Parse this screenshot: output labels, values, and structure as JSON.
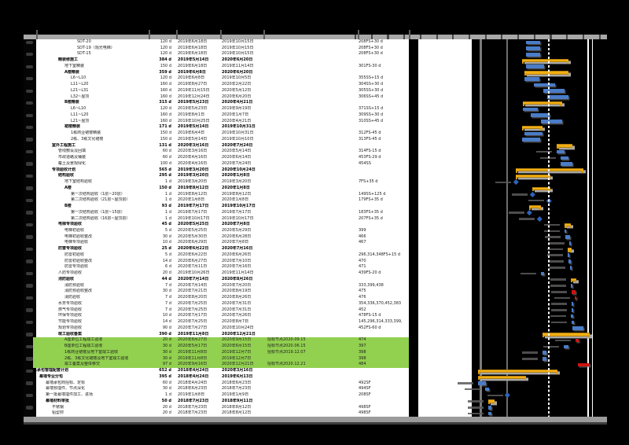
{
  "document": {
    "type_note": "printed Gantt schedule page (table columns cut off at top, no visible titles)",
    "colors": {
      "task_bar": "#4a7cc7",
      "summary_bar": "#f2ae13",
      "critical_bar": "#cf1212",
      "milestone": "#2f62b8",
      "highlight_row": "#92d050",
      "chart_background": "#000000",
      "page": "#ffffff",
      "timeline_strip": "#a8a8a8"
    }
  },
  "table": {
    "rows": [
      {
        "name": "SDT-20",
        "lv": 7,
        "bold": 0,
        "dur": "120 d",
        "start": "2019年6月18日",
        "finish": "2019年10月15日",
        "note": "",
        "pred": "208FS+30 d",
        "bar": "task",
        "hl": 0
      },
      {
        "name": "SDT-19（观光电梯）",
        "lv": 7,
        "bold": 0,
        "dur": "120 d",
        "start": "2019年6月18日",
        "finish": "2019年10月15日",
        "note": "",
        "pred": "208FS+30 d",
        "bar": "task",
        "hl": 0
      },
      {
        "name": "SDT-15",
        "lv": 7,
        "bold": 0,
        "dur": "120 d",
        "start": "2019年6月18日",
        "finish": "2019年10月15日",
        "note": "",
        "pred": "208FS+30 d",
        "bar": "task",
        "hl": 0
      },
      {
        "name": "精装修施工",
        "lv": 4,
        "bold": 1,
        "dur": "384 d",
        "start": "2019年5月14日",
        "finish": "2020年6月20日",
        "note": "",
        "pred": "",
        "bar": "summary",
        "hl": 0
      },
      {
        "name": "地下室精装",
        "lv": 5,
        "bold": 0,
        "dur": "150 d",
        "start": "2019年6月18日",
        "finish": "2019年11月14日",
        "note": "",
        "pred": "301FS-30 d",
        "bar": "task",
        "hl": 0
      },
      {
        "name": "A楼精装",
        "lv": 5,
        "bold": 1,
        "dur": "359 d",
        "start": "2019年6月8日",
        "finish": "2020年6月20日",
        "note": "",
        "pred": "",
        "bar": "summary",
        "hl": 0
      },
      {
        "name": "L6~L10",
        "lv": 6,
        "bold": 0,
        "dur": "120 d",
        "start": "2019年6月8日",
        "finish": "2019年10月5日",
        "note": "",
        "pred": "355SS+15 d",
        "bar": "task",
        "hl": 0
      },
      {
        "name": "L11~L20",
        "lv": 6,
        "bold": 0,
        "dur": "160 d",
        "start": "2019年8月27日",
        "finish": "2020年2月22日",
        "note": "",
        "pred": "304SS+30 d",
        "bar": "task",
        "hl": 0
      },
      {
        "name": "L21~L31",
        "lv": 6,
        "bold": 0,
        "dur": "160 d",
        "start": "2019年11月15日",
        "finish": "2020年5月12日",
        "note": "",
        "pred": "305SS+30 d",
        "bar": "task",
        "hl": 0
      },
      {
        "name": "L32~屋顶",
        "lv": 6,
        "bold": 0,
        "dur": "160 d",
        "start": "2019年12月24日",
        "finish": "2020年6月20日",
        "note": "",
        "pred": "306SS+45 d",
        "bar": "task",
        "hl": 0
      },
      {
        "name": "B楼精装",
        "lv": 5,
        "bold": 1,
        "dur": "315 d",
        "start": "2019年5月23日",
        "finish": "2020年4月21日",
        "note": "",
        "pred": "",
        "bar": "summary",
        "hl": 0
      },
      {
        "name": "L6~L10",
        "lv": 6,
        "bold": 0,
        "dur": "120 d",
        "start": "2019年5月23日",
        "finish": "2019年9月19日",
        "note": "",
        "pred": "371SS+15 d",
        "bar": "task",
        "hl": 0
      },
      {
        "name": "L11~L20",
        "lv": 6,
        "bold": 0,
        "dur": "160 d",
        "start": "2019年8月1日",
        "finish": "2020年1月7日",
        "note": "",
        "pred": "309SS+30 d",
        "bar": "task",
        "hl": 0
      },
      {
        "name": "L21~屋顶",
        "lv": 6,
        "bold": 0,
        "dur": "160 d",
        "start": "2019年10月25日",
        "finish": "2020年4月21日",
        "note": "",
        "pred": "310SS+45 d",
        "bar": "task",
        "hl": 0
      },
      {
        "name": "裙楼精装",
        "lv": 5,
        "bold": 1,
        "dur": "171 d",
        "start": "2019年5月14日",
        "finish": "2019年10月31日",
        "note": "",
        "pred": "",
        "bar": "summary",
        "hl": 0
      },
      {
        "name": "1栋商业裙楼精装",
        "lv": 6,
        "bold": 0,
        "dur": "150 d",
        "start": "2019年6月4日",
        "finish": "2019年10月31日",
        "note": "",
        "pred": "312FS-45 d",
        "bar": "task",
        "hl": 0
      },
      {
        "name": "2栋、3栋文化裙楼",
        "lv": 6,
        "bold": 0,
        "dur": "150 d",
        "start": "2019年5月14日",
        "finish": "2019年10月10日",
        "note": "",
        "pred": "313FS-45 d",
        "bar": "task",
        "hl": 0
      },
      {
        "name": "室外工程施工",
        "lv": 3,
        "bold": 1,
        "dur": "131 d",
        "start": "2020年3月16日",
        "finish": "2020年7月24日",
        "note": "",
        "pred": "",
        "bar": "summary",
        "hl": 0
      },
      {
        "name": "管线敷设及回填",
        "lv": 4,
        "bold": 0,
        "dur": "60 d",
        "start": "2020年3月16日",
        "finish": "2020年5月14日",
        "note": "",
        "pred": "314FS-15 d",
        "bar": "task",
        "hl": 0
      },
      {
        "name": "市政道路及铺装",
        "lv": 4,
        "bold": 0,
        "dur": "60 d",
        "start": "2020年4月16日",
        "finish": "2020年6月14日",
        "note": "",
        "pred": "453FS-29 d",
        "bar": "task",
        "hl": 0
      },
      {
        "name": "覆土及景观绿化",
        "lv": 4,
        "bold": 0,
        "dur": "100 d",
        "start": "2020年4月16日",
        "finish": "2020年7月24日",
        "note": "",
        "pred": "454SS",
        "bar": "task",
        "hl": 0
      },
      {
        "name": "专项验收计划",
        "lv": 3,
        "bold": 1,
        "dur": "565 d",
        "start": "2019年3月20日",
        "finish": "2020年10月24日",
        "note": "",
        "pred": "",
        "bar": "summary",
        "hl": 0
      },
      {
        "name": "结构验收",
        "lv": 4,
        "bold": 1,
        "dur": "295 d",
        "start": "2019年3月20日",
        "finish": "2020年1月8日",
        "note": "",
        "pred": "",
        "bar": "summary",
        "hl": 0
      },
      {
        "name": "地下室结构验收",
        "lv": 5,
        "bold": 0,
        "dur": "1 d",
        "start": "2019年3月20日",
        "finish": "2019年3月20日",
        "note": "",
        "pred": "7FS+35 d",
        "bar": "milestone",
        "hl": 0
      },
      {
        "name": "A楼",
        "lv": 5,
        "bold": 1,
        "dur": "150 d",
        "start": "2019年8月12日",
        "finish": "2020年1月8日",
        "note": "",
        "pred": "",
        "bar": "summary",
        "hl": 0
      },
      {
        "name": "第一次结构验收（1层~20层）",
        "lv": 6,
        "bold": 0,
        "dur": "1 d",
        "start": "2019年8月12日",
        "finish": "2019年8月12日",
        "note": "",
        "pred": "149SS+125 d",
        "bar": "milestone",
        "hl": 0
      },
      {
        "name": "第二次结构验收（21层~屋顶层）",
        "lv": 6,
        "bold": 0,
        "dur": "1 d",
        "start": "2020年1月8日",
        "finish": "2020年1月8日",
        "note": "",
        "pred": "179FS+35 d",
        "bar": "milestone",
        "hl": 0
      },
      {
        "name": "B楼",
        "lv": 5,
        "bold": 1,
        "dur": "93 d",
        "start": "2019年7月17日",
        "finish": "2019年10月17日",
        "note": "",
        "pred": "",
        "bar": "summary",
        "hl": 0
      },
      {
        "name": "第一次结构验收（1层~15层）",
        "lv": 6,
        "bold": 0,
        "dur": "1 d",
        "start": "2019年7月17日",
        "finish": "2019年7月17日",
        "note": "",
        "pred": "183FS+35 d",
        "bar": "milestone",
        "hl": 0
      },
      {
        "name": "第二次结构验收（16层~屋顶层）",
        "lv": 6,
        "bold": 0,
        "dur": "1 d",
        "start": "2019年10月17日",
        "finish": "2019年10月17日",
        "note": "",
        "pred": "207FS+35 d",
        "bar": "milestone",
        "hl": 0
      },
      {
        "name": "电梯专项验收",
        "lv": 4,
        "bold": 1,
        "dur": "45 d",
        "start": "2020年5月25日",
        "finish": "2020年7月8日",
        "note": "",
        "pred": "",
        "bar": "summary",
        "hl": 0
      },
      {
        "name": "电梯初验收",
        "lv": 5,
        "bold": 0,
        "dur": "5 d",
        "start": "2020年5月25日",
        "finish": "2020年5月29日",
        "note": "",
        "pred": "399",
        "bar": "task",
        "hl": 0
      },
      {
        "name": "电梯初验收整改",
        "lv": 5,
        "bold": 0,
        "dur": "30 d",
        "start": "2020年5月30日",
        "finish": "2020年6月28日",
        "note": "",
        "pred": "466",
        "bar": "task",
        "hl": 0
      },
      {
        "name": "电梯专项验收",
        "lv": 5,
        "bold": 0,
        "dur": "10 d",
        "start": "2020年6月29日",
        "finish": "2020年7月8日",
        "note": "",
        "pred": "467",
        "bar": "task",
        "hl": 0
      },
      {
        "name": "防雷专项验收",
        "lv": 4,
        "bold": 1,
        "dur": "25 d",
        "start": "2020年6月22日",
        "finish": "2020年7月16日",
        "note": "",
        "pred": "",
        "bar": "summary",
        "hl": 0
      },
      {
        "name": "防雷初验收",
        "lv": 5,
        "bold": 0,
        "dur": "5 d",
        "start": "2020年6月22日",
        "finish": "2020年6月26日",
        "note": "",
        "pred": "296,314,348FS+15 d",
        "bar": "task",
        "hl": 0
      },
      {
        "name": "防雷初验收整改",
        "lv": 5,
        "bold": 0,
        "dur": "14 d",
        "start": "2020年6月27日",
        "finish": "2020年7月10日",
        "note": "",
        "pred": "470",
        "bar": "task",
        "hl": 0
      },
      {
        "name": "防雷专项验收",
        "lv": 5,
        "bold": 0,
        "dur": "6 d",
        "start": "2020年7月11日",
        "finish": "2020年7月16日",
        "note": "",
        "pred": "471",
        "bar": "task",
        "hl": 0
      },
      {
        "name": "人防专项验收",
        "lv": 4,
        "bold": 0,
        "dur": "20 d",
        "start": "2019年10月26日",
        "finish": "2019年11月14日",
        "note": "",
        "pred": "439FS-20 d",
        "bar": "task",
        "hl": 0
      },
      {
        "name": "消防验收",
        "lv": 4,
        "bold": 1,
        "dur": "44 d",
        "start": "2020年7月14日",
        "finish": "2020年8月26日",
        "note": "",
        "pred": "",
        "bar": "summary",
        "hl": 0
      },
      {
        "name": "消防预验收",
        "lv": 5,
        "bold": 0,
        "dur": "7 d",
        "start": "2020年7月14日",
        "finish": "2020年7月20日",
        "note": "",
        "pred": "333,399,438",
        "bar": "task",
        "hl": 0
      },
      {
        "name": "消防预验收整改",
        "lv": 5,
        "bold": 0,
        "dur": "30 d",
        "start": "2020年7月21日",
        "finish": "2020年8月19日",
        "note": "",
        "pred": "475",
        "bar": "critical",
        "hl": 0
      },
      {
        "name": "消防验收",
        "lv": 5,
        "bold": 0,
        "dur": "7 d",
        "start": "2020年8月20日",
        "finish": "2020年8月26日",
        "note": "",
        "pred": "476",
        "bar": "critical",
        "hl": 0
      },
      {
        "name": "水务专项验收",
        "lv": 4,
        "bold": 0,
        "dur": "7 d",
        "start": "2020年7月25日",
        "finish": "2020年7月31日",
        "note": "",
        "pred": "354,336,370,452,383",
        "bar": "task",
        "hl": 0
      },
      {
        "name": "燃气专项验收",
        "lv": 4,
        "bold": 0,
        "dur": "7 d",
        "start": "2020年7月25日",
        "finish": "2020年7月31日",
        "note": "",
        "pred": "452",
        "bar": "task",
        "hl": 0
      },
      {
        "name": "环保专项验收",
        "lv": 4,
        "bold": 0,
        "dur": "10 d",
        "start": "2020年7月17日",
        "finish": "2020年7月26日",
        "note": "",
        "pred": "478FS-15 d",
        "bar": "task",
        "hl": 0
      },
      {
        "name": "节能专项验收",
        "lv": 4,
        "bold": 0,
        "dur": "14 d",
        "start": "2020年7月25日",
        "finish": "2020年8月7日",
        "note": "",
        "pred": "145,296,314,333,399,",
        "bar": "task",
        "hl": 0
      },
      {
        "name": "规划专项验收",
        "lv": 4,
        "bold": 0,
        "dur": "90 d",
        "start": "2020年7月27日",
        "finish": "2020年10月24日",
        "note": "",
        "pred": "452FS-60 d",
        "bar": "task",
        "hl": 0
      },
      {
        "name": "竣工验收备案",
        "lv": 4,
        "bold": 1,
        "dur": "390 d",
        "start": "2019年11月8日",
        "finish": "2020年12月21日",
        "note": "",
        "pred": "",
        "bar": "summary",
        "hl": 0
      },
      {
        "name": "A座单位工程竣工验收",
        "lv": 5,
        "bold": 0,
        "dur": "20 d",
        "start": "2020年8月27日",
        "finish": "2020年9月15日",
        "note": "招标节点2020.09.15",
        "pred": "474",
        "bar": "critical",
        "hl": 1
      },
      {
        "name": "B座单位工程竣工验收",
        "lv": 5,
        "bold": 0,
        "dur": "30 d",
        "start": "2020年5月17日",
        "finish": "2020年6月15日",
        "note": "招标节点2020.06.15",
        "pred": "397",
        "bar": "task",
        "hl": 1
      },
      {
        "name": "1栋商业裙楼及地下室竣工验收",
        "lv": 5,
        "bold": 0,
        "dur": "30 d",
        "start": "2019年11月8日",
        "finish": "2019年12月7日",
        "note": "招标节点2019.12.07",
        "pred": "398",
        "bar": "task",
        "hl": 1
      },
      {
        "name": "2栋、3栋文化裙楼及地下室竣工验收",
        "lv": 5,
        "bold": 0,
        "dur": "30 d",
        "start": "2019年11月8日",
        "finish": "2019年12月7日",
        "note": "",
        "pred": "398",
        "bar": "task",
        "hl": 1
      },
      {
        "name": "竣工备案及整体移交",
        "lv": 5,
        "bold": 0,
        "dur": "97 d",
        "start": "2020年9月16日",
        "finish": "2020年12月21日",
        "note": "招标节点2020.12.21",
        "pred": "484",
        "bar": "critical",
        "hl": 1
      },
      {
        "name": "总承包管理配套计划",
        "lv": 0,
        "bold": 1,
        "dur": "652 d",
        "start": "2018年4月24日",
        "finish": "2020年3月16日",
        "note": "",
        "pred": "",
        "bar": "summary",
        "hl": 0
      },
      {
        "name": "幕墙专业分包",
        "lv": 1,
        "bold": 1,
        "dur": "395 d",
        "start": "2018年4月24日",
        "finish": "2019年6月13日",
        "note": "",
        "pred": "",
        "bar": "summary",
        "hl": 0
      },
      {
        "name": "幕墙承包商招标、定标",
        "lv": 2,
        "bold": 0,
        "dur": "60 d",
        "start": "2018年4月24日",
        "finish": "2018年6月23日",
        "note": "",
        "pred": "492SF",
        "bar": "task",
        "hl": 0
      },
      {
        "name": "幕墙预埋件、节点深化",
        "lv": 2,
        "bold": 0,
        "dur": "30 d",
        "start": "2018年6月23日",
        "finish": "2018年7月23日",
        "note": "",
        "pred": "494SF",
        "bar": "task",
        "hl": 0
      },
      {
        "name": "第一批幕墙埋件加工、进场",
        "lv": 2,
        "bold": 0,
        "dur": "1 d",
        "start": "2019年1月8日",
        "finish": "2019年1月9日",
        "note": "",
        "pred": "208SF",
        "bar": "milestone",
        "hl": 0
      },
      {
        "name": "幕墙材料审批",
        "lv": 2,
        "bold": 1,
        "dur": "50 d",
        "start": "2018年7月23日",
        "finish": "2018年9月11日",
        "note": "",
        "pred": "",
        "bar": "summary",
        "hl": 0
      },
      {
        "name": "不锈钢",
        "lv": 3,
        "bold": 0,
        "dur": "20 d",
        "start": "2018年7月23日",
        "finish": "2018年8月12日",
        "note": "",
        "pred": "498SF",
        "bar": "task",
        "hl": 0
      },
      {
        "name": "铝型材",
        "lv": 3,
        "bold": 0,
        "dur": "20 d",
        "start": "2018年7月23日",
        "finish": "2018年8月12日",
        "note": "",
        "pred": "498SF",
        "bar": "task",
        "hl": 0
      }
    ]
  }
}
